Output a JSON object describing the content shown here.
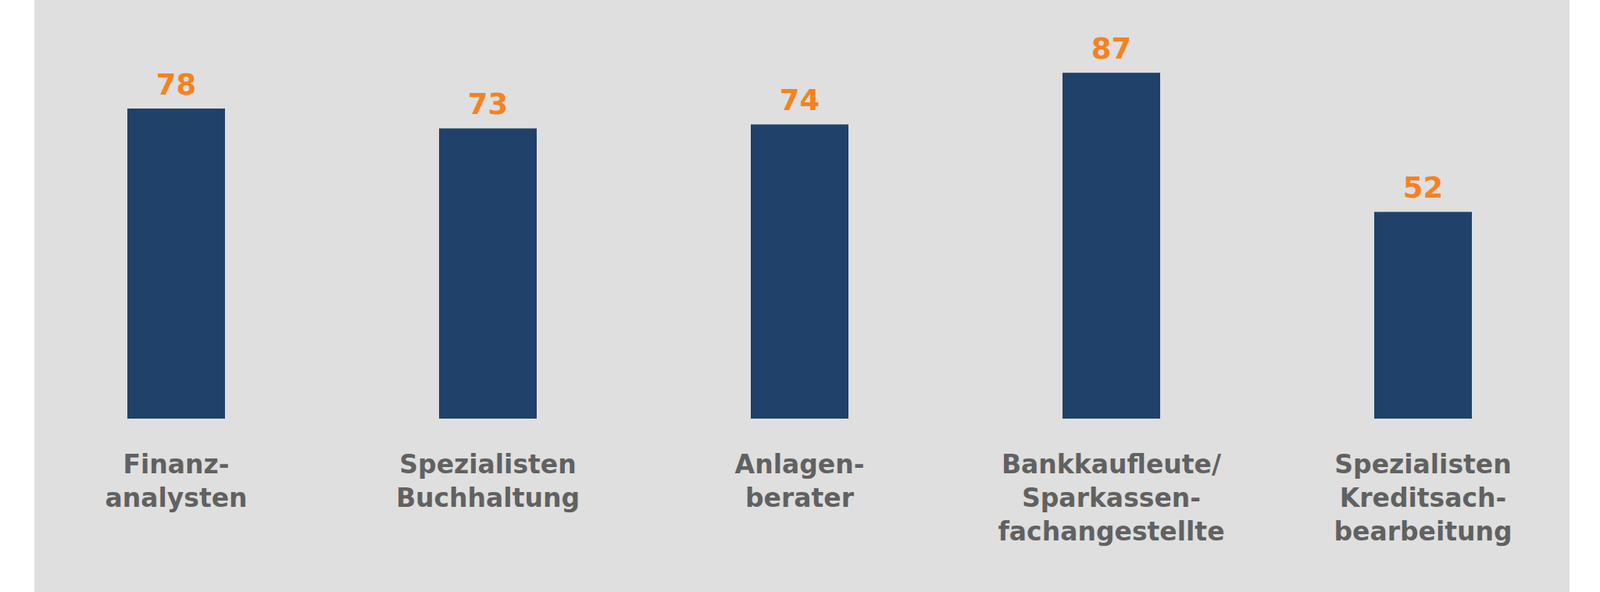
{
  "chart_data": {
    "type": "bar",
    "categories": [
      "Finanz-\nanalysten",
      "Spezialisten\nBuchhaltung",
      "Anlagen-\nberater",
      "Bankkaufleute/\nSparkassen-\nfachangestellte",
      "Spezialisten\nKreditsach-\nbearbeitung"
    ],
    "values": [
      78,
      73,
      74,
      87,
      52
    ],
    "color": "#20416a",
    "ylim": [
      0,
      100
    ],
    "grid": false,
    "data_labels": true,
    "tick_labels": "x"
  }
}
